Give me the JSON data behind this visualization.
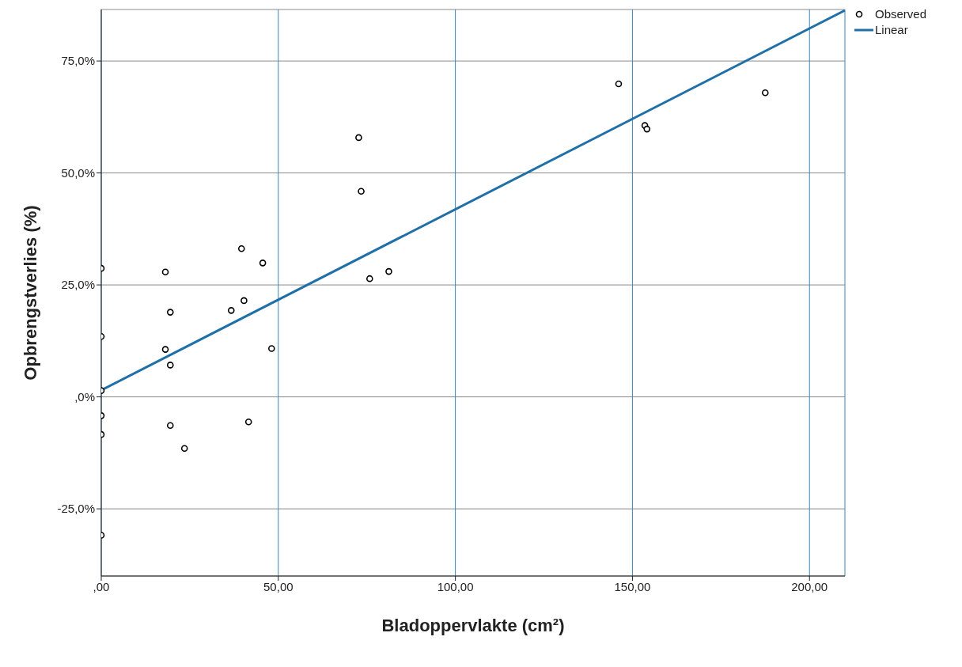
{
  "chart_data": {
    "type": "scatter",
    "xlabel": "Bladoppervlakte (cm²)",
    "ylabel": "Opbrengstverlies (%)",
    "xlim": [
      0,
      210
    ],
    "xticks": [
      {
        "value": 0,
        "label": ",00"
      },
      {
        "value": 50,
        "label": "50,00"
      },
      {
        "value": 100,
        "label": "100,00"
      },
      {
        "value": 150,
        "label": "150,00"
      },
      {
        "value": 200,
        "label": "200,00"
      }
    ],
    "ylim": [
      -40,
      86.5
    ],
    "yticks": [
      {
        "value": -25,
        "label": "-25,0%"
      },
      {
        "value": 0,
        "label": ",0%"
      },
      {
        "value": 25,
        "label": "25,0%"
      },
      {
        "value": 50,
        "label": "50,0%"
      },
      {
        "value": 75,
        "label": "75,0%"
      }
    ],
    "grid": true,
    "legend": "top right",
    "series": [
      {
        "name": "Observed",
        "marker": "circle",
        "color": "#000000",
        "x": [
          0,
          0,
          0,
          0,
          0,
          0,
          18.1,
          19.5,
          18.1,
          19.5,
          19.5,
          23.5,
          39.6,
          45.6,
          36.7,
          40.3,
          48.1,
          41.6,
          72.7,
          73.4,
          75.8,
          81.2,
          146.1,
          153.5,
          154.1,
          187.5
        ],
        "values": [
          28.7,
          13.5,
          1.4,
          -4.2,
          -8.4,
          -30.9,
          27.9,
          18.9,
          10.6,
          7.1,
          -6.4,
          -11.5,
          33.1,
          29.9,
          19.3,
          21.5,
          10.8,
          -5.6,
          57.9,
          45.9,
          26.4,
          28.0,
          69.9,
          60.6,
          59.8,
          67.9
        ]
      },
      {
        "name": "Linear",
        "type": "line",
        "marker": "none",
        "color": "#1f6fa8",
        "x": [
          0,
          210
        ],
        "values": [
          1.5,
          86.3
        ]
      }
    ]
  }
}
